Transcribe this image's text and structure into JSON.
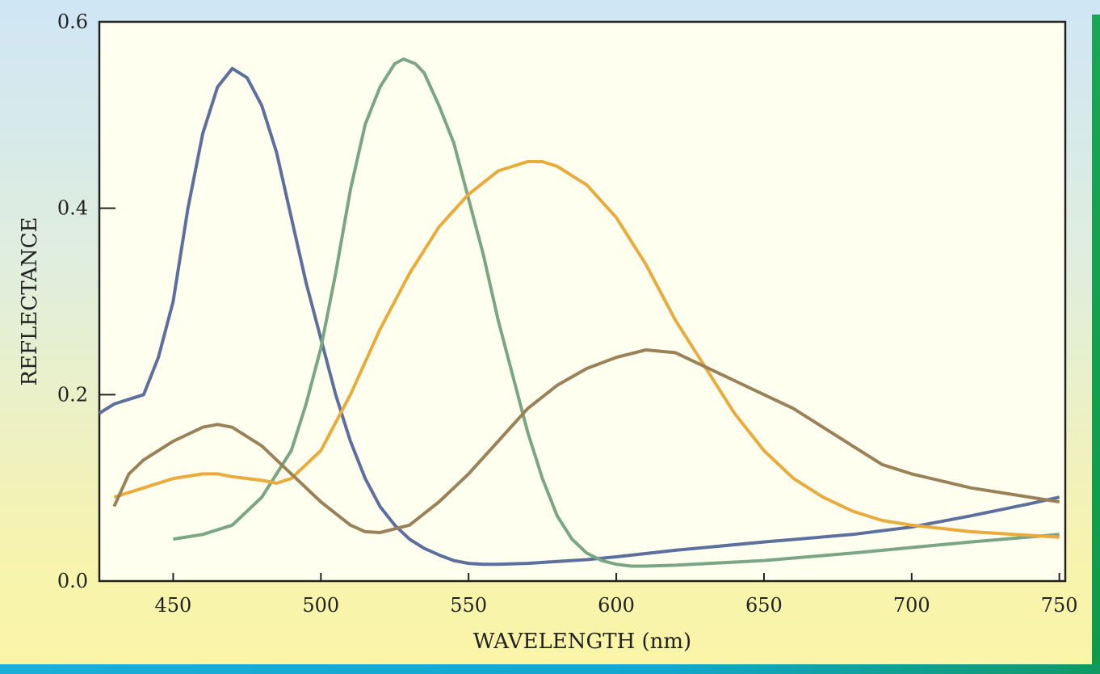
{
  "chart_data": {
    "type": "line",
    "title": "",
    "xlabel": "WAVELENGTH (nm)",
    "ylabel": "REFLECTANCE",
    "xlim": [
      425,
      752
    ],
    "ylim": [
      0.0,
      0.6
    ],
    "xticks": [
      450,
      500,
      550,
      600,
      650,
      700,
      750
    ],
    "yticks": [
      0.0,
      0.2,
      0.4,
      0.6
    ],
    "ytick_labels": [
      "0.0",
      "0.2",
      "0.4",
      "0.6"
    ],
    "grid": false,
    "legend": "none",
    "series": [
      {
        "color": "#5d6f9c",
        "x": [
          425,
          430,
          440,
          445,
          450,
          455,
          460,
          465,
          470,
          475,
          480,
          485,
          490,
          495,
          500,
          505,
          510,
          515,
          520,
          525,
          530,
          535,
          540,
          545,
          550,
          555,
          560,
          570,
          580,
          590,
          600,
          620,
          650,
          680,
          700,
          720,
          740,
          750
        ],
        "y": [
          0.18,
          0.19,
          0.2,
          0.24,
          0.3,
          0.4,
          0.48,
          0.53,
          0.55,
          0.54,
          0.51,
          0.46,
          0.39,
          0.32,
          0.26,
          0.2,
          0.15,
          0.11,
          0.08,
          0.06,
          0.045,
          0.035,
          0.028,
          0.022,
          0.019,
          0.018,
          0.018,
          0.019,
          0.021,
          0.023,
          0.026,
          0.033,
          0.042,
          0.05,
          0.058,
          0.07,
          0.083,
          0.09
        ]
      },
      {
        "color": "#7aa684",
        "x": [
          450,
          460,
          470,
          480,
          490,
          495,
          500,
          505,
          510,
          515,
          520,
          525,
          528,
          532,
          535,
          540,
          545,
          550,
          555,
          560,
          565,
          570,
          575,
          580,
          585,
          590,
          595,
          600,
          605,
          610,
          620,
          650,
          680,
          700,
          720,
          750
        ],
        "y": [
          0.045,
          0.05,
          0.06,
          0.09,
          0.14,
          0.19,
          0.25,
          0.33,
          0.42,
          0.49,
          0.53,
          0.555,
          0.56,
          0.555,
          0.545,
          0.51,
          0.47,
          0.41,
          0.35,
          0.28,
          0.22,
          0.16,
          0.11,
          0.07,
          0.045,
          0.03,
          0.022,
          0.018,
          0.016,
          0.016,
          0.017,
          0.022,
          0.03,
          0.036,
          0.042,
          0.05
        ]
      },
      {
        "color": "#e9ab3c",
        "x": [
          430,
          440,
          450,
          460,
          465,
          470,
          480,
          485,
          490,
          500,
          510,
          520,
          530,
          540,
          550,
          560,
          570,
          575,
          580,
          590,
          600,
          610,
          620,
          630,
          640,
          650,
          660,
          670,
          680,
          690,
          700,
          720,
          750
        ],
        "y": [
          0.09,
          0.1,
          0.11,
          0.115,
          0.115,
          0.112,
          0.108,
          0.105,
          0.11,
          0.14,
          0.2,
          0.27,
          0.33,
          0.38,
          0.415,
          0.44,
          0.45,
          0.45,
          0.445,
          0.425,
          0.39,
          0.34,
          0.28,
          0.23,
          0.18,
          0.14,
          0.11,
          0.09,
          0.075,
          0.065,
          0.06,
          0.053,
          0.047
        ]
      },
      {
        "color": "#9a8158",
        "x": [
          430,
          435,
          440,
          450,
          460,
          465,
          470,
          480,
          490,
          500,
          510,
          515,
          520,
          530,
          540,
          550,
          560,
          570,
          580,
          590,
          600,
          610,
          620,
          630,
          640,
          650,
          660,
          670,
          680,
          690,
          700,
          720,
          750
        ],
        "y": [
          0.08,
          0.115,
          0.13,
          0.15,
          0.165,
          0.168,
          0.165,
          0.145,
          0.115,
          0.085,
          0.06,
          0.053,
          0.052,
          0.06,
          0.085,
          0.115,
          0.15,
          0.185,
          0.21,
          0.228,
          0.24,
          0.248,
          0.245,
          0.23,
          0.215,
          0.2,
          0.185,
          0.165,
          0.145,
          0.125,
          0.115,
          0.1,
          0.085
        ]
      }
    ]
  }
}
